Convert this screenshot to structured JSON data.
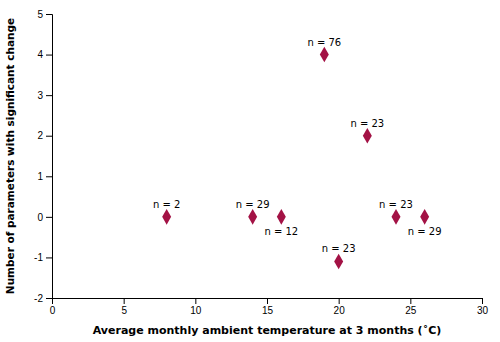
{
  "chart_data": {
    "type": "scatter",
    "x": [
      8,
      14,
      16,
      19,
      22,
      20,
      24,
      26
    ],
    "values": [
      0,
      0,
      0,
      4,
      2,
      -1.1,
      0,
      0
    ],
    "annotations": [
      "n = 2",
      "n = 29",
      "n = 12",
      "n = 76",
      "n = 23",
      "n = 23",
      "n = 23",
      "n = 29"
    ],
    "color": "#A31245",
    "marker": "diamond",
    "xlim": [
      0,
      30
    ],
    "ylim": [
      -2,
      5
    ],
    "xticks": [
      0,
      5,
      10,
      15,
      20,
      25,
      30
    ],
    "yticks": [
      -2,
      -1,
      0,
      1,
      2,
      3,
      4,
      5
    ],
    "xlabel": "Average monthly ambient temperature at 3 months (˚C)",
    "ylabel": "Number of parameters with significant change"
  }
}
